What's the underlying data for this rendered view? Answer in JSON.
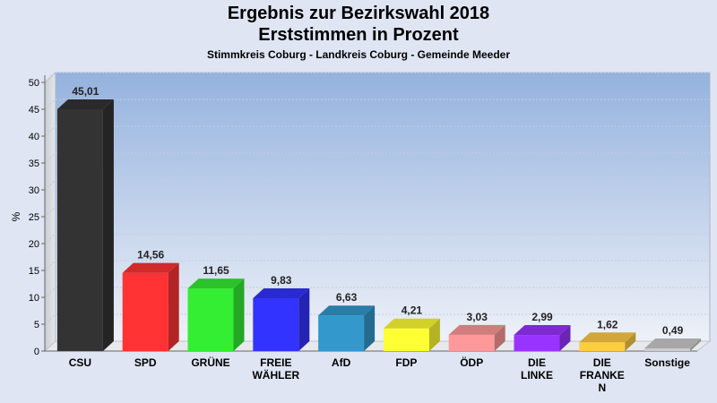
{
  "chart_data": {
    "type": "bar",
    "title": "Ergebnis zur Bezirkswahl 2018",
    "subtitle": "Erststimmen in Prozent",
    "caption": "Stimmkreis Coburg - Landkreis Coburg - Gemeinde Meeder",
    "ylabel": "%",
    "ylim": [
      0,
      50
    ],
    "yticks": [
      0,
      5,
      10,
      15,
      20,
      25,
      30,
      35,
      40,
      45,
      50
    ],
    "grid": true,
    "categories": [
      [
        "CSU"
      ],
      [
        "SPD"
      ],
      [
        "GRÜNE"
      ],
      [
        "FREIE",
        "WÄHLER"
      ],
      [
        "AfD"
      ],
      [
        "FDP"
      ],
      [
        "ÖDP"
      ],
      [
        "DIE",
        "LINKE"
      ],
      [
        "DIE",
        "FRANKE",
        "N"
      ],
      [
        "Sonstige"
      ]
    ],
    "values": [
      45.01,
      14.56,
      11.65,
      9.83,
      6.63,
      4.21,
      3.03,
      2.99,
      1.62,
      0.49
    ],
    "value_labels": [
      "45,01",
      "14,56",
      "11,65",
      "9,83",
      "6,63",
      "4,21",
      "3,03",
      "2,99",
      "1,62",
      "0,49"
    ],
    "colors": [
      "#333333",
      "#ff3333",
      "#33ee33",
      "#3333ff",
      "#3399cc",
      "#ffff33",
      "#ff9999",
      "#9933ff",
      "#ffcc44",
      "#cccccc"
    ]
  }
}
